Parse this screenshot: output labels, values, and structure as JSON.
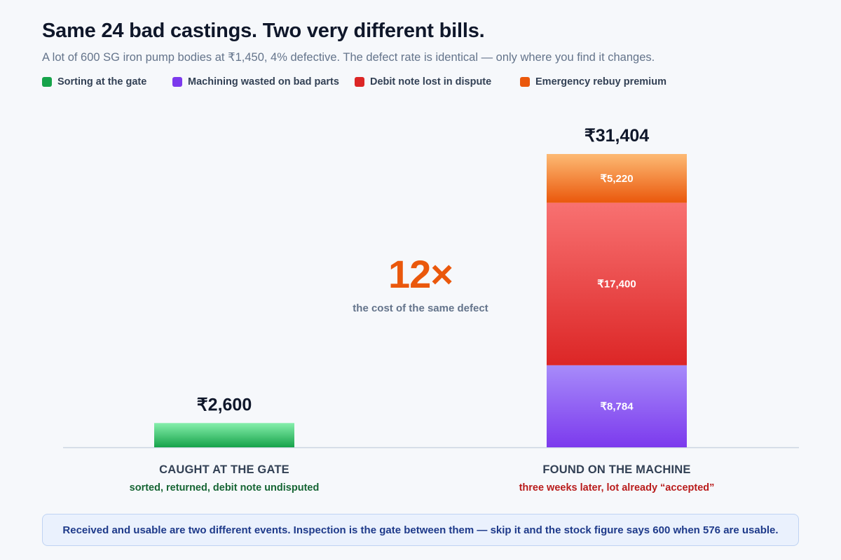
{
  "title": "Same 24 bad castings. Two very different bills.",
  "subtitle": "A lot of 600 SG iron pump bodies at ₹1,450, 4% defective. The defect rate is identical — only where you find it changes.",
  "legend": [
    {
      "label": "Sorting at the gate",
      "color": "#16a34a"
    },
    {
      "label": "Machining wasted on bad parts",
      "color": "#7c3aed"
    },
    {
      "label": "Debit note lost in dispute",
      "color": "#dc2626"
    },
    {
      "label": "Emergency rebuy premium",
      "color": "#ea580c"
    }
  ],
  "callout": {
    "multiplier": "12×",
    "caption": "the cost of the same defect"
  },
  "categories": [
    {
      "title": "CAUGHT AT THE GATE",
      "subtitle": "sorted, returned, debit note undisputed",
      "subtitle_color": "#166534"
    },
    {
      "title": "FOUND ON THE MACHINE",
      "subtitle": "three weeks later, lot already “accepted”",
      "subtitle_color": "#b91c1c"
    }
  ],
  "footer_note": "Received and usable are two different events. Inspection is the gate between them — skip it and the stock figure says 600 when 576 are usable.",
  "chart_data": {
    "type": "bar",
    "stacked": true,
    "categories": [
      "CAUGHT AT THE GATE",
      "FOUND ON THE MACHINE"
    ],
    "ylim": [
      0,
      31404
    ],
    "grid": false,
    "legend_position": "top-left",
    "series": [
      {
        "name": "Sorting at the gate",
        "color": "#16a34a",
        "top_color": "#86efac",
        "values": [
          2600,
          0
        ],
        "labels": [
          "",
          ""
        ]
      },
      {
        "name": "Machining wasted on bad parts",
        "color": "#7c3aed",
        "top_color": "#a78bfa",
        "values": [
          0,
          8784
        ],
        "labels": [
          "",
          "₹8,784"
        ]
      },
      {
        "name": "Debit note lost in dispute",
        "color": "#dc2626",
        "top_color": "#f87171",
        "values": [
          0,
          17400
        ],
        "labels": [
          "",
          "₹17,400"
        ]
      },
      {
        "name": "Emergency rebuy premium",
        "color": "#ea580c",
        "top_color": "#fdba74",
        "values": [
          0,
          5220
        ],
        "labels": [
          "",
          "₹5,220"
        ]
      }
    ],
    "totals": [
      2600,
      31404
    ],
    "total_labels": [
      "₹2,600",
      "₹31,404"
    ]
  }
}
